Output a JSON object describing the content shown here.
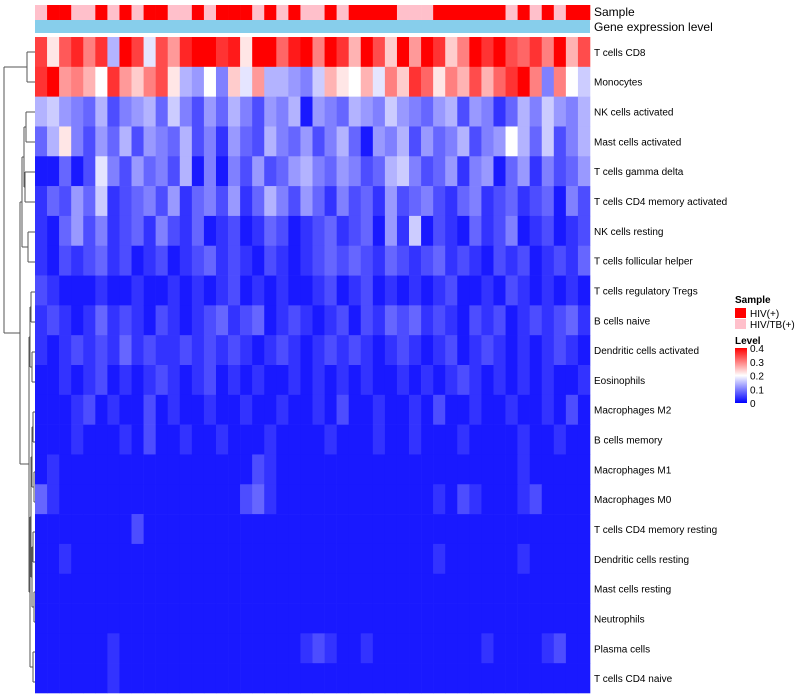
{
  "chart_data": {
    "type": "heatmap",
    "annotation_tracks": [
      "Sample",
      "Gene expression level"
    ],
    "rows": [
      "T cells CD8",
      "Monocytes",
      "NK cells activated",
      "Mast cells activated",
      "T cells gamma delta",
      "T cells CD4 memory activated",
      "NK cells resting",
      "T cells follicular helper",
      "T cells regulatory  Tregs",
      "B cells naive",
      "Dendritic cells activated",
      "Eosinophils",
      "Macrophages M2",
      "B cells memory",
      "Macrophages M1",
      "Macrophages M0",
      "T cells CD4 memory resting",
      "Dendritic cells resting",
      "Mast cells resting",
      "Neutrophils",
      "Plasma cells",
      "T cells CD4 naive"
    ],
    "n_samples": 46,
    "sample_groups": [
      "HIV/TB(+)",
      "HIV(+)",
      "HIV(+)",
      "HIV/TB(+)",
      "HIV/TB(+)",
      "HIV(+)",
      "HIV/TB(+)",
      "HIV(+)",
      "HIV/TB(+)",
      "HIV(+)",
      "HIV(+)",
      "HIV/TB(+)",
      "HIV/TB(+)",
      "HIV(+)",
      "HIV/TB(+)",
      "HIV(+)",
      "HIV(+)",
      "HIV(+)",
      "HIV/TB(+)",
      "HIV(+)",
      "HIV/TB(+)",
      "HIV(+)",
      "HIV/TB(+)",
      "HIV/TB(+)",
      "HIV(+)",
      "HIV/TB(+)",
      "HIV(+)",
      "HIV(+)",
      "HIV(+)",
      "HIV(+)",
      "HIV/TB(+)",
      "HIV/TB(+)",
      "HIV/TB(+)",
      "HIV(+)",
      "HIV(+)",
      "HIV(+)",
      "HIV(+)",
      "HIV(+)",
      "HIV(+)",
      "HIV/TB(+)",
      "HIV(+)",
      "HIV/TB(+)",
      "HIV(+)",
      "HIV/TB(+)",
      "HIV(+)",
      "HIV(+)"
    ],
    "values": [
      [
        0.35,
        0.22,
        0.33,
        0.37,
        0.3,
        0.36,
        0.14,
        0.4,
        0.35,
        0.18,
        0.34,
        0.28,
        0.37,
        0.4,
        0.4,
        0.36,
        0.38,
        0.22,
        0.4,
        0.4,
        0.32,
        0.38,
        0.4,
        0.3,
        0.4,
        0.36,
        0.26,
        0.4,
        0.34,
        0.24,
        0.4,
        0.28,
        0.4,
        0.36,
        0.24,
        0.3,
        0.4,
        0.36,
        0.4,
        0.34,
        0.32,
        0.36,
        0.3,
        0.4,
        0.26,
        0.34
      ],
      [
        0.36,
        0.4,
        0.28,
        0.3,
        0.26,
        0.2,
        0.36,
        0.28,
        0.24,
        0.3,
        0.34,
        0.22,
        0.14,
        0.12,
        0.2,
        0.1,
        0.24,
        0.18,
        0.28,
        0.14,
        0.14,
        0.12,
        0.1,
        0.16,
        0.26,
        0.22,
        0.2,
        0.26,
        0.18,
        0.3,
        0.24,
        0.36,
        0.32,
        0.22,
        0.3,
        0.26,
        0.34,
        0.26,
        0.32,
        0.36,
        0.4,
        0.3,
        0.1,
        0.3,
        0.2,
        0.16
      ],
      [
        0.14,
        0.16,
        0.12,
        0.1,
        0.08,
        0.14,
        0.06,
        0.1,
        0.12,
        0.14,
        0.08,
        0.16,
        0.1,
        0.06,
        0.12,
        0.08,
        0.14,
        0.1,
        0.06,
        0.12,
        0.1,
        0.14,
        0.02,
        0.12,
        0.1,
        0.08,
        0.14,
        0.12,
        0.1,
        0.16,
        0.12,
        0.1,
        0.08,
        0.12,
        0.14,
        0.06,
        0.12,
        0.1,
        0.04,
        0.08,
        0.14,
        0.1,
        0.16,
        0.12,
        0.1,
        0.14
      ],
      [
        0.08,
        0.14,
        0.22,
        0.1,
        0.06,
        0.12,
        0.08,
        0.14,
        0.06,
        0.12,
        0.1,
        0.08,
        0.14,
        0.06,
        0.1,
        0.04,
        0.12,
        0.08,
        0.06,
        0.14,
        0.1,
        0.08,
        0.12,
        0.06,
        0.1,
        0.14,
        0.08,
        0.02,
        0.12,
        0.1,
        0.14,
        0.06,
        0.12,
        0.08,
        0.1,
        0.14,
        0.06,
        0.1,
        0.12,
        0.2,
        0.14,
        0.08,
        0.16,
        0.06,
        0.1,
        0.14
      ],
      [
        0.02,
        0.02,
        0.08,
        0.02,
        0.06,
        0.18,
        0.1,
        0.06,
        0.12,
        0.08,
        0.1,
        0.06,
        0.14,
        0.02,
        0.1,
        0.02,
        0.1,
        0.06,
        0.12,
        0.06,
        0.08,
        0.12,
        0.14,
        0.1,
        0.08,
        0.12,
        0.1,
        0.06,
        0.08,
        0.14,
        0.16,
        0.1,
        0.06,
        0.08,
        0.12,
        0.04,
        0.1,
        0.12,
        0.02,
        0.08,
        0.12,
        0.04,
        0.1,
        0.06,
        0.08,
        0.12
      ],
      [
        0.04,
        0.08,
        0.06,
        0.12,
        0.08,
        0.16,
        0.04,
        0.06,
        0.08,
        0.1,
        0.06,
        0.12,
        0.04,
        0.08,
        0.1,
        0.06,
        0.12,
        0.04,
        0.08,
        0.14,
        0.1,
        0.06,
        0.12,
        0.08,
        0.04,
        0.1,
        0.06,
        0.08,
        0.04,
        0.12,
        0.06,
        0.08,
        0.1,
        0.06,
        0.04,
        0.08,
        0.1,
        0.04,
        0.06,
        0.08,
        0.04,
        0.06,
        0.08,
        0.02,
        0.1,
        0.06
      ],
      [
        0.04,
        0.02,
        0.08,
        0.12,
        0.06,
        0.1,
        0.04,
        0.06,
        0.08,
        0.04,
        0.1,
        0.06,
        0.04,
        0.08,
        0.02,
        0.04,
        0.06,
        0.02,
        0.04,
        0.08,
        0.06,
        0.02,
        0.04,
        0.06,
        0.08,
        0.04,
        0.06,
        0.08,
        0.02,
        0.12,
        0.04,
        0.16,
        0.02,
        0.06,
        0.04,
        0.02,
        0.08,
        0.04,
        0.06,
        0.1,
        0.02,
        0.04,
        0.06,
        0.02,
        0.04,
        0.06
      ],
      [
        0.04,
        0.02,
        0.06,
        0.04,
        0.06,
        0.08,
        0.04,
        0.06,
        0.02,
        0.04,
        0.06,
        0.02,
        0.04,
        0.06,
        0.08,
        0.04,
        0.06,
        0.04,
        0.02,
        0.06,
        0.04,
        0.02,
        0.04,
        0.06,
        0.08,
        0.06,
        0.08,
        0.06,
        0.04,
        0.08,
        0.06,
        0.04,
        0.06,
        0.08,
        0.04,
        0.06,
        0.04,
        0.02,
        0.06,
        0.04,
        0.06,
        0.02,
        0.04,
        0.06,
        0.04,
        0.08
      ],
      [
        0.06,
        0.04,
        0.02,
        0.02,
        0.02,
        0.04,
        0.02,
        0.02,
        0.04,
        0.02,
        0.02,
        0.04,
        0.02,
        0.04,
        0.02,
        0.04,
        0.06,
        0.02,
        0.04,
        0.02,
        0.04,
        0.02,
        0.02,
        0.04,
        0.06,
        0.02,
        0.04,
        0.06,
        0.02,
        0.04,
        0.02,
        0.04,
        0.02,
        0.04,
        0.06,
        0.02,
        0.02,
        0.04,
        0.02,
        0.06,
        0.04,
        0.02,
        0.04,
        0.02,
        0.04,
        0.02
      ],
      [
        0.04,
        0.06,
        0.04,
        0.02,
        0.04,
        0.08,
        0.04,
        0.06,
        0.04,
        0.02,
        0.06,
        0.04,
        0.02,
        0.04,
        0.06,
        0.08,
        0.04,
        0.06,
        0.08,
        0.02,
        0.04,
        0.06,
        0.04,
        0.02,
        0.04,
        0.06,
        0.02,
        0.06,
        0.04,
        0.08,
        0.06,
        0.08,
        0.04,
        0.06,
        0.04,
        0.02,
        0.06,
        0.04,
        0.06,
        0.02,
        0.04,
        0.06,
        0.04,
        0.06,
        0.08,
        0.04
      ],
      [
        0.04,
        0.02,
        0.04,
        0.06,
        0.04,
        0.06,
        0.04,
        0.08,
        0.04,
        0.06,
        0.04,
        0.04,
        0.06,
        0.04,
        0.06,
        0.04,
        0.06,
        0.04,
        0.02,
        0.04,
        0.06,
        0.04,
        0.02,
        0.04,
        0.06,
        0.04,
        0.06,
        0.04,
        0.02,
        0.04,
        0.06,
        0.04,
        0.02,
        0.04,
        0.06,
        0.02,
        0.04,
        0.06,
        0.04,
        0.02,
        0.04,
        0.02,
        0.04,
        0.06,
        0.04,
        0.02
      ],
      [
        0.02,
        0.02,
        0.04,
        0.02,
        0.04,
        0.06,
        0.02,
        0.04,
        0.02,
        0.04,
        0.06,
        0.04,
        0.02,
        0.04,
        0.06,
        0.02,
        0.04,
        0.02,
        0.04,
        0.02,
        0.02,
        0.04,
        0.02,
        0.04,
        0.02,
        0.04,
        0.02,
        0.04,
        0.02,
        0.02,
        0.04,
        0.02,
        0.04,
        0.02,
        0.04,
        0.06,
        0.04,
        0.02,
        0.04,
        0.02,
        0.04,
        0.02,
        0.04,
        0.02,
        0.02,
        0.04
      ],
      [
        0.02,
        0.02,
        0.02,
        0.04,
        0.06,
        0.02,
        0.04,
        0.02,
        0.02,
        0.06,
        0.02,
        0.04,
        0.02,
        0.02,
        0.04,
        0.02,
        0.02,
        0.04,
        0.02,
        0.02,
        0.04,
        0.02,
        0.02,
        0.04,
        0.02,
        0.06,
        0.02,
        0.02,
        0.04,
        0.02,
        0.02,
        0.04,
        0.02,
        0.06,
        0.02,
        0.02,
        0.04,
        0.02,
        0.02,
        0.04,
        0.02,
        0.02,
        0.04,
        0.02,
        0.06,
        0.02
      ],
      [
        0.02,
        0.02,
        0.02,
        0.04,
        0.02,
        0.02,
        0.02,
        0.04,
        0.02,
        0.06,
        0.02,
        0.02,
        0.04,
        0.02,
        0.02,
        0.04,
        0.02,
        0.02,
        0.02,
        0.04,
        0.02,
        0.02,
        0.02,
        0.02,
        0.04,
        0.02,
        0.02,
        0.02,
        0.04,
        0.02,
        0.02,
        0.04,
        0.02,
        0.02,
        0.02,
        0.04,
        0.02,
        0.02,
        0.02,
        0.02,
        0.04,
        0.02,
        0.02,
        0.04,
        0.02,
        0.02
      ],
      [
        0.02,
        0.04,
        0.02,
        0.02,
        0.02,
        0.02,
        0.02,
        0.02,
        0.02,
        0.02,
        0.02,
        0.02,
        0.02,
        0.02,
        0.02,
        0.02,
        0.02,
        0.02,
        0.06,
        0.04,
        0.02,
        0.02,
        0.02,
        0.02,
        0.02,
        0.02,
        0.02,
        0.02,
        0.02,
        0.02,
        0.02,
        0.02,
        0.02,
        0.02,
        0.02,
        0.02,
        0.02,
        0.02,
        0.02,
        0.02,
        0.04,
        0.02,
        0.02,
        0.02,
        0.02,
        0.02
      ],
      [
        0.08,
        0.04,
        0.02,
        0.02,
        0.02,
        0.02,
        0.02,
        0.02,
        0.02,
        0.02,
        0.02,
        0.02,
        0.02,
        0.02,
        0.02,
        0.02,
        0.02,
        0.06,
        0.08,
        0.04,
        0.02,
        0.02,
        0.02,
        0.02,
        0.02,
        0.02,
        0.02,
        0.02,
        0.02,
        0.02,
        0.02,
        0.02,
        0.02,
        0.04,
        0.02,
        0.06,
        0.04,
        0.02,
        0.02,
        0.02,
        0.04,
        0.06,
        0.02,
        0.02,
        0.02,
        0.02
      ],
      [
        0.02,
        0.02,
        0.02,
        0.02,
        0.02,
        0.02,
        0.02,
        0.02,
        0.06,
        0.02,
        0.02,
        0.02,
        0.02,
        0.02,
        0.02,
        0.02,
        0.02,
        0.02,
        0.02,
        0.02,
        0.02,
        0.02,
        0.02,
        0.02,
        0.02,
        0.02,
        0.02,
        0.02,
        0.02,
        0.02,
        0.02,
        0.02,
        0.02,
        0.02,
        0.02,
        0.02,
        0.02,
        0.02,
        0.02,
        0.02,
        0.02,
        0.02,
        0.02,
        0.02,
        0.02,
        0.02
      ],
      [
        0.02,
        0.02,
        0.04,
        0.02,
        0.02,
        0.02,
        0.02,
        0.02,
        0.02,
        0.02,
        0.02,
        0.02,
        0.02,
        0.02,
        0.02,
        0.02,
        0.02,
        0.02,
        0.02,
        0.02,
        0.02,
        0.02,
        0.02,
        0.02,
        0.02,
        0.02,
        0.02,
        0.02,
        0.02,
        0.02,
        0.02,
        0.02,
        0.02,
        0.04,
        0.02,
        0.02,
        0.02,
        0.02,
        0.02,
        0.02,
        0.04,
        0.02,
        0.02,
        0.02,
        0.02,
        0.02
      ],
      [
        0.02,
        0.02,
        0.02,
        0.02,
        0.02,
        0.02,
        0.02,
        0.02,
        0.02,
        0.02,
        0.02,
        0.02,
        0.02,
        0.02,
        0.02,
        0.02,
        0.02,
        0.02,
        0.02,
        0.02,
        0.02,
        0.02,
        0.02,
        0.02,
        0.02,
        0.02,
        0.02,
        0.02,
        0.02,
        0.02,
        0.02,
        0.02,
        0.02,
        0.02,
        0.02,
        0.02,
        0.02,
        0.02,
        0.02,
        0.02,
        0.02,
        0.02,
        0.02,
        0.02,
        0.02,
        0.02
      ],
      [
        0.02,
        0.02,
        0.02,
        0.02,
        0.02,
        0.02,
        0.02,
        0.02,
        0.02,
        0.02,
        0.02,
        0.02,
        0.02,
        0.02,
        0.02,
        0.02,
        0.02,
        0.02,
        0.02,
        0.02,
        0.02,
        0.02,
        0.02,
        0.02,
        0.02,
        0.02,
        0.02,
        0.02,
        0.02,
        0.02,
        0.02,
        0.02,
        0.02,
        0.02,
        0.02,
        0.02,
        0.02,
        0.02,
        0.02,
        0.02,
        0.02,
        0.02,
        0.02,
        0.02,
        0.02,
        0.02
      ],
      [
        0.02,
        0.02,
        0.02,
        0.02,
        0.02,
        0.02,
        0.04,
        0.02,
        0.02,
        0.02,
        0.02,
        0.02,
        0.02,
        0.02,
        0.02,
        0.02,
        0.02,
        0.02,
        0.02,
        0.02,
        0.02,
        0.02,
        0.04,
        0.06,
        0.04,
        0.02,
        0.02,
        0.04,
        0.02,
        0.02,
        0.02,
        0.02,
        0.02,
        0.02,
        0.02,
        0.02,
        0.02,
        0.04,
        0.02,
        0.02,
        0.02,
        0.02,
        0.04,
        0.06,
        0.02,
        0.02
      ],
      [
        0.02,
        0.02,
        0.02,
        0.02,
        0.02,
        0.02,
        0.04,
        0.02,
        0.02,
        0.02,
        0.02,
        0.02,
        0.02,
        0.02,
        0.02,
        0.02,
        0.02,
        0.02,
        0.02,
        0.02,
        0.02,
        0.02,
        0.02,
        0.02,
        0.02,
        0.02,
        0.02,
        0.02,
        0.02,
        0.02,
        0.02,
        0.02,
        0.02,
        0.02,
        0.02,
        0.02,
        0.02,
        0.02,
        0.02,
        0.02,
        0.02,
        0.02,
        0.02,
        0.02,
        0.02,
        0.02
      ]
    ],
    "color_scale": {
      "min": 0,
      "mid": 0.2,
      "max": 0.4,
      "low": "#0000ff",
      "mid_color": "#ffffff",
      "high": "#ff0000"
    },
    "legend": {
      "sample_title": "Sample",
      "sample_entries": [
        {
          "label": "HIV(+)",
          "color": "#ff0000"
        },
        {
          "label": "HIV/TB(+)",
          "color": "#ffc0cb"
        }
      ],
      "level_title": "Level",
      "level_ticks": [
        "0.4",
        "0.3",
        "0.2",
        "0.1",
        "0"
      ],
      "level_tick_values": [
        0.4,
        0.3,
        0.2,
        0.1,
        0
      ]
    },
    "gene_expression_color": "#87ceeb"
  }
}
